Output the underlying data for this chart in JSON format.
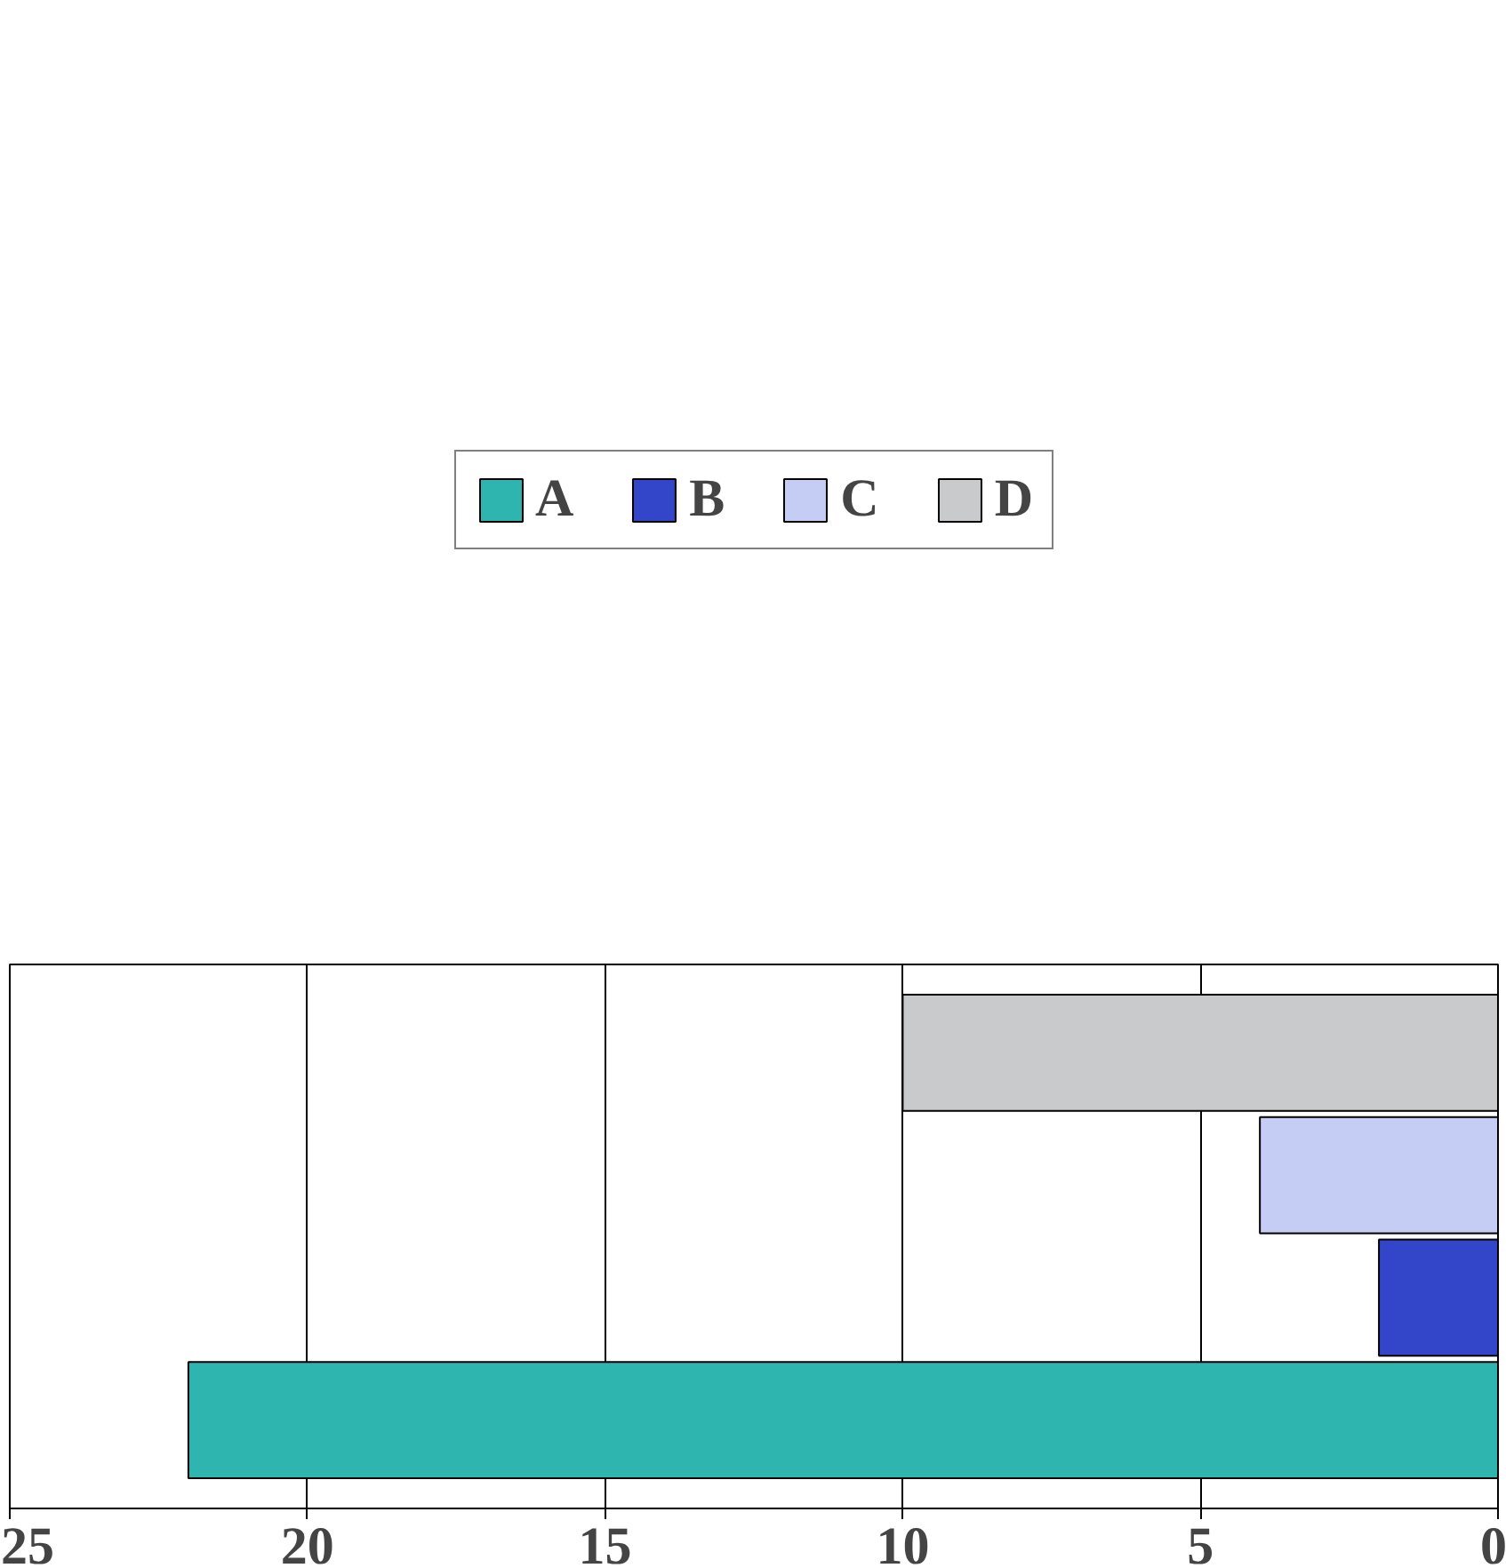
{
  "chart_data": {
    "type": "bar",
    "orientation": "horizontal",
    "categories": [
      null
    ],
    "series": [
      {
        "name": "A",
        "color": "#2fb5b0",
        "values": [
          22
        ]
      },
      {
        "name": "B",
        "color": "#3345c8",
        "values": [
          2
        ]
      },
      {
        "name": "C",
        "color": "#c5cdf5",
        "values": [
          4
        ]
      },
      {
        "name": "D",
        "color": "#c8cacc",
        "values": [
          10
        ]
      }
    ],
    "xlim": [
      25,
      0
    ],
    "xticks": [
      25,
      20,
      15,
      10,
      5,
      0
    ],
    "grid": "x",
    "legend": "top"
  }
}
